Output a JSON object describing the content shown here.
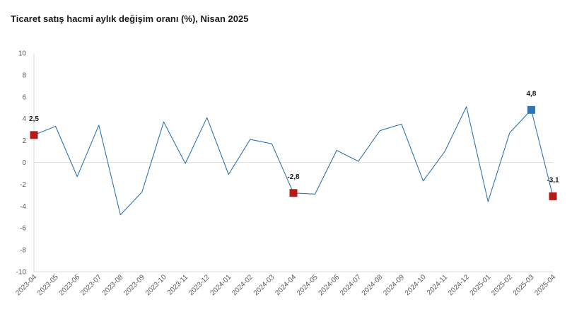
{
  "chart_data": {
    "type": "line",
    "title": "Ticaret satış hacmi aylık değişim oranı (%), Nisan 2025",
    "xlabel": "",
    "ylabel": "",
    "ylim": [
      -10,
      10
    ],
    "y_ticks": [
      "10",
      "8",
      "6",
      "4",
      "2",
      "0",
      "-2",
      "-4",
      "-6",
      "-8",
      "-10"
    ],
    "grid": "zero-line only",
    "legend": "none",
    "categories": [
      "2023-04",
      "2023-05",
      "2023-06",
      "2023-07",
      "2023-08",
      "2023-09",
      "2023-10",
      "2023-11",
      "2023-12",
      "2024-01",
      "2024-02",
      "2024-03",
      "2024-04",
      "2024-05",
      "2024-06",
      "2024-07",
      "2024-08",
      "2024-09",
      "2024-10",
      "2024-11",
      "2024-12",
      "2025-01",
      "2025-02",
      "2025-03",
      "2025-04"
    ],
    "series": [
      {
        "values": [
          2.5,
          3.3,
          -1.3,
          3.4,
          -4.8,
          -2.7,
          3.7,
          -0.1,
          4.1,
          -1.1,
          2.1,
          1.7,
          -2.8,
          -2.9,
          1.1,
          0.1,
          2.9,
          3.5,
          -1.7,
          1.0,
          5.1,
          -3.6,
          2.7,
          4.8,
          -3.1
        ],
        "color": "#2e75b6"
      }
    ],
    "highlighted_points": [
      {
        "index": 0,
        "label": "2,5",
        "color": "#b31b1b"
      },
      {
        "index": 12,
        "label": "-2,8",
        "color": "#b31b1b"
      },
      {
        "index": 23,
        "label": "4,8",
        "color": "#2e75b6"
      },
      {
        "index": 24,
        "label": "-3,1",
        "color": "#b31b1b"
      }
    ]
  }
}
